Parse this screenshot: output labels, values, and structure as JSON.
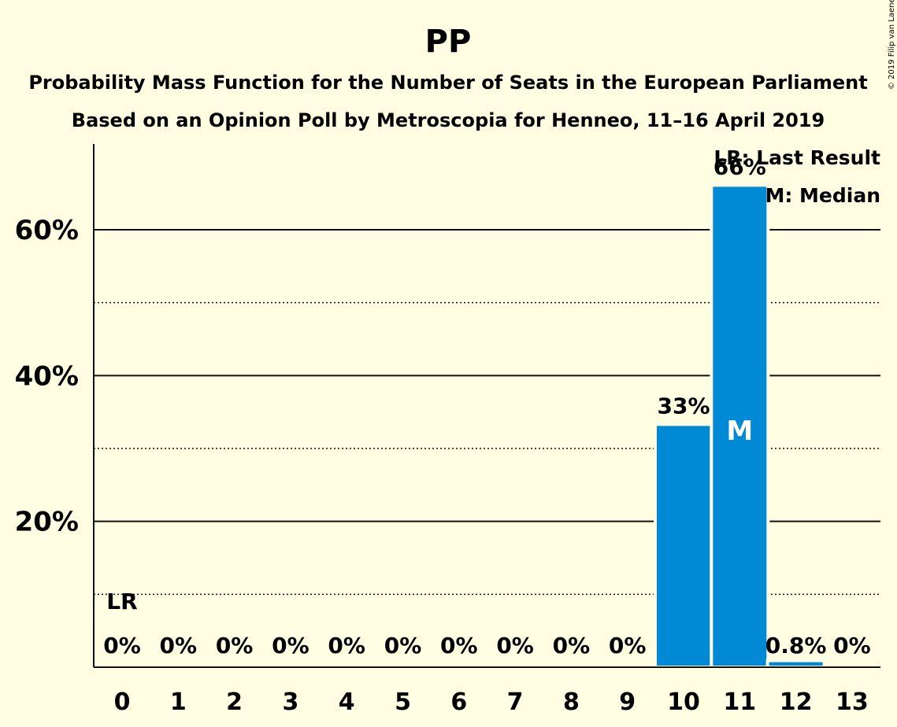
{
  "header": {
    "title": "PP",
    "subtitle1": "Probability Mass Function for the Number of Seats in the European Parliament",
    "subtitle2": "Based on an Opinion Poll by Metroscopia for Henneo, 11–16 April 2019"
  },
  "copyright": "© 2019 Filip van Laenen",
  "legend": {
    "last_result": "LR: Last Result",
    "median": "M: Median"
  },
  "colors": {
    "background": "#fffde2",
    "bar": "#008ad6",
    "text": "#111111"
  },
  "chart_data": {
    "type": "bar",
    "categories": [
      "0",
      "1",
      "2",
      "3",
      "4",
      "5",
      "6",
      "7",
      "8",
      "9",
      "10",
      "11",
      "12",
      "13"
    ],
    "values": [
      0,
      0,
      0,
      0,
      0,
      0,
      0,
      0,
      0,
      0,
      33.2,
      66,
      0.8,
      0
    ],
    "data_labels": [
      "0%",
      "0%",
      "0%",
      "0%",
      "0%",
      "0%",
      "0%",
      "0%",
      "0%",
      "0%",
      "33%",
      "66%",
      "0.8%",
      "0%"
    ],
    "ylim": [
      0,
      72
    ],
    "yticks": [
      20,
      40,
      60
    ],
    "ytick_labels": [
      "20%",
      "40%",
      "60%"
    ],
    "minor_gridlines": [
      10,
      30,
      50
    ],
    "last_result": {
      "category": "0",
      "label": "LR"
    },
    "median": {
      "category": "11",
      "label": "M"
    },
    "grid": true,
    "legend_position": "top-right"
  }
}
